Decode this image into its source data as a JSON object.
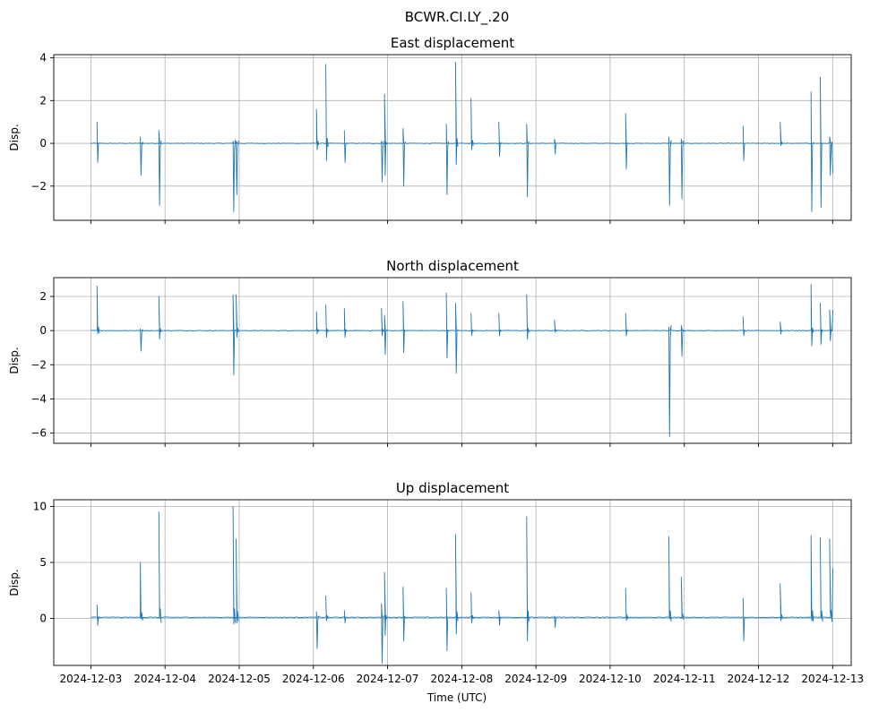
{
  "figure": {
    "suptitle": "BCWR.CI.LY_.20",
    "xlabel": "Time (UTC)"
  },
  "chart_data": [
    {
      "type": "line",
      "title": "East displacement",
      "ylabel": "Disp.",
      "ylim": [
        -3.6,
        4.15
      ],
      "yticks": [
        4,
        2,
        0,
        -2
      ],
      "ytick_labels": [
        "4",
        "2",
        "0",
        "−2"
      ],
      "xlim": [
        "2024-12-02T12:00",
        "2024-12-13T06:00"
      ],
      "xticks": [
        "2024-12-03",
        "2024-12-04",
        "2024-12-05",
        "2024-12-06",
        "2024-12-07",
        "2024-12-08",
        "2024-12-09",
        "2024-12-10",
        "2024-12-11",
        "2024-12-12",
        "2024-12-13"
      ],
      "show_xtick_labels": false,
      "grid": true,
      "line_color": "#1f77b4",
      "baseline": 0,
      "spikes": [
        [
          "2024-12-03T02:00",
          1.0,
          -0.9
        ],
        [
          "2024-12-03T16:00",
          0.3,
          -1.5
        ],
        [
          "2024-12-03T22:00",
          0.6,
          -2.9
        ],
        [
          "2024-12-04T22:00",
          0.1,
          -3.2
        ],
        [
          "2024-12-04T23:00",
          0.1,
          -2.4
        ],
        [
          "2024-12-06T01:00",
          1.6,
          -0.3
        ],
        [
          "2024-12-06T04:00",
          3.7,
          -0.8
        ],
        [
          "2024-12-06T10:00",
          0.6,
          -0.9
        ],
        [
          "2024-12-06T22:00",
          0.1,
          -1.8
        ],
        [
          "2024-12-06T23:00",
          2.3,
          -1.5
        ],
        [
          "2024-12-07T05:00",
          0.7,
          -2.0
        ],
        [
          "2024-12-07T19:00",
          0.9,
          -2.4
        ],
        [
          "2024-12-07T22:00",
          3.8,
          -1.0
        ],
        [
          "2024-12-08T03:00",
          2.1,
          -0.3
        ],
        [
          "2024-12-08T12:00",
          1.0,
          -0.6
        ],
        [
          "2024-12-08T21:00",
          0.9,
          -2.5
        ],
        [
          "2024-12-09T06:00",
          0.2,
          -0.5
        ],
        [
          "2024-12-10T05:00",
          1.4,
          -1.2
        ],
        [
          "2024-12-10T19:00",
          0.3,
          -2.9
        ],
        [
          "2024-12-10T23:00",
          0.2,
          -2.6
        ],
        [
          "2024-12-11T19:00",
          0.8,
          -0.8
        ],
        [
          "2024-12-12T07:00",
          1.0,
          -0.1
        ],
        [
          "2024-12-12T17:00",
          2.4,
          -3.2
        ],
        [
          "2024-12-12T20:00",
          3.1,
          -3.0
        ],
        [
          "2024-12-12T23:00",
          0.3,
          -1.5
        ]
      ],
      "end_value": -1.4
    },
    {
      "type": "line",
      "title": "North displacement",
      "ylabel": "Disp.",
      "ylim": [
        -6.6,
        3.1
      ],
      "yticks": [
        2,
        0,
        -2,
        -4,
        -6
      ],
      "ytick_labels": [
        "2",
        "0",
        "−2",
        "−4",
        "−6"
      ],
      "xlim": [
        "2024-12-02T12:00",
        "2024-12-13T06:00"
      ],
      "xticks": [
        "2024-12-03",
        "2024-12-04",
        "2024-12-05",
        "2024-12-06",
        "2024-12-07",
        "2024-12-08",
        "2024-12-09",
        "2024-12-10",
        "2024-12-11",
        "2024-12-12",
        "2024-12-13"
      ],
      "show_xtick_labels": false,
      "grid": true,
      "line_color": "#1f77b4",
      "baseline": 0,
      "spikes": [
        [
          "2024-12-03T02:00",
          2.6,
          -0.2
        ],
        [
          "2024-12-03T16:00",
          0.1,
          -1.2
        ],
        [
          "2024-12-03T22:00",
          2.0,
          -0.5
        ],
        [
          "2024-12-04T22:00",
          2.1,
          -2.6
        ],
        [
          "2024-12-04T23:00",
          2.1,
          -0.4
        ],
        [
          "2024-12-06T01:00",
          1.1,
          -0.2
        ],
        [
          "2024-12-06T04:00",
          1.5,
          -0.4
        ],
        [
          "2024-12-06T10:00",
          1.3,
          -0.4
        ],
        [
          "2024-12-06T22:00",
          1.3,
          -0.3
        ],
        [
          "2024-12-06T23:00",
          0.9,
          -1.4
        ],
        [
          "2024-12-07T05:00",
          1.7,
          -1.3
        ],
        [
          "2024-12-07T19:00",
          2.2,
          -1.6
        ],
        [
          "2024-12-07T22:00",
          1.6,
          -2.5
        ],
        [
          "2024-12-08T03:00",
          1.0,
          -0.3
        ],
        [
          "2024-12-08T12:00",
          1.0,
          -0.3
        ],
        [
          "2024-12-08T21:00",
          2.1,
          -0.5
        ],
        [
          "2024-12-09T06:00",
          0.6,
          -0.1
        ],
        [
          "2024-12-10T05:00",
          1.0,
          -0.3
        ],
        [
          "2024-12-10T19:00",
          0.2,
          -6.2
        ],
        [
          "2024-12-10T23:00",
          0.3,
          -1.5
        ],
        [
          "2024-12-11T19:00",
          0.8,
          -0.3
        ],
        [
          "2024-12-12T07:00",
          0.5,
          -0.2
        ],
        [
          "2024-12-12T17:00",
          2.7,
          -0.9
        ],
        [
          "2024-12-12T20:00",
          1.6,
          -0.8
        ],
        [
          "2024-12-12T23:00",
          1.2,
          -0.6
        ]
      ],
      "end_value": 1.2
    },
    {
      "type": "line",
      "title": "Up displacement",
      "ylabel": "Disp.",
      "ylim": [
        -4.2,
        10.6
      ],
      "yticks": [
        10,
        5,
        0
      ],
      "ytick_labels": [
        "10",
        "5",
        "0"
      ],
      "xlim": [
        "2024-12-02T12:00",
        "2024-12-13T06:00"
      ],
      "xticks": [
        "2024-12-03",
        "2024-12-04",
        "2024-12-05",
        "2024-12-06",
        "2024-12-07",
        "2024-12-08",
        "2024-12-09",
        "2024-12-10",
        "2024-12-11",
        "2024-12-12",
        "2024-12-13"
      ],
      "xtick_labels": [
        "2024-12-03",
        "2024-12-04",
        "2024-12-05",
        "2024-12-06",
        "2024-12-07",
        "2024-12-08",
        "2024-12-09",
        "2024-12-10",
        "2024-12-11",
        "2024-12-12",
        "2024-12-13"
      ],
      "show_xtick_labels": true,
      "grid": true,
      "line_color": "#1f77b4",
      "baseline": 0.1,
      "spikes": [
        [
          "2024-12-03T02:00",
          1.2,
          -0.6
        ],
        [
          "2024-12-03T16:00",
          5.0,
          0.0
        ],
        [
          "2024-12-03T22:00",
          9.5,
          0.0
        ],
        [
          "2024-12-04T22:00",
          10.0,
          -0.5
        ],
        [
          "2024-12-04T23:00",
          7.1,
          -0.4
        ],
        [
          "2024-12-06T01:00",
          0.6,
          -2.7
        ],
        [
          "2024-12-06T04:00",
          2.0,
          -0.2
        ],
        [
          "2024-12-06T10:00",
          0.7,
          -0.4
        ],
        [
          "2024-12-06T22:00",
          1.3,
          -4.0
        ],
        [
          "2024-12-06T23:00",
          4.1,
          -1.5
        ],
        [
          "2024-12-07T05:00",
          2.8,
          -2.0
        ],
        [
          "2024-12-07T19:00",
          2.7,
          -2.9
        ],
        [
          "2024-12-07T22:00",
          7.5,
          -1.4
        ],
        [
          "2024-12-08T03:00",
          2.3,
          -0.4
        ],
        [
          "2024-12-08T12:00",
          0.7,
          -0.6
        ],
        [
          "2024-12-08T21:00",
          9.1,
          -2.0
        ],
        [
          "2024-12-09T06:00",
          0.2,
          -0.8
        ],
        [
          "2024-12-10T05:00",
          2.7,
          -0.2
        ],
        [
          "2024-12-10T19:00",
          7.3,
          0.0
        ],
        [
          "2024-12-10T23:00",
          3.7,
          0.0
        ],
        [
          "2024-12-11T19:00",
          1.8,
          -2.0
        ],
        [
          "2024-12-12T07:00",
          3.1,
          -0.2
        ],
        [
          "2024-12-12T17:00",
          7.4,
          -0.2
        ],
        [
          "2024-12-12T20:00",
          7.2,
          0.0
        ],
        [
          "2024-12-12T23:00",
          7.1,
          0.5
        ]
      ],
      "end_value": 4.5
    }
  ]
}
